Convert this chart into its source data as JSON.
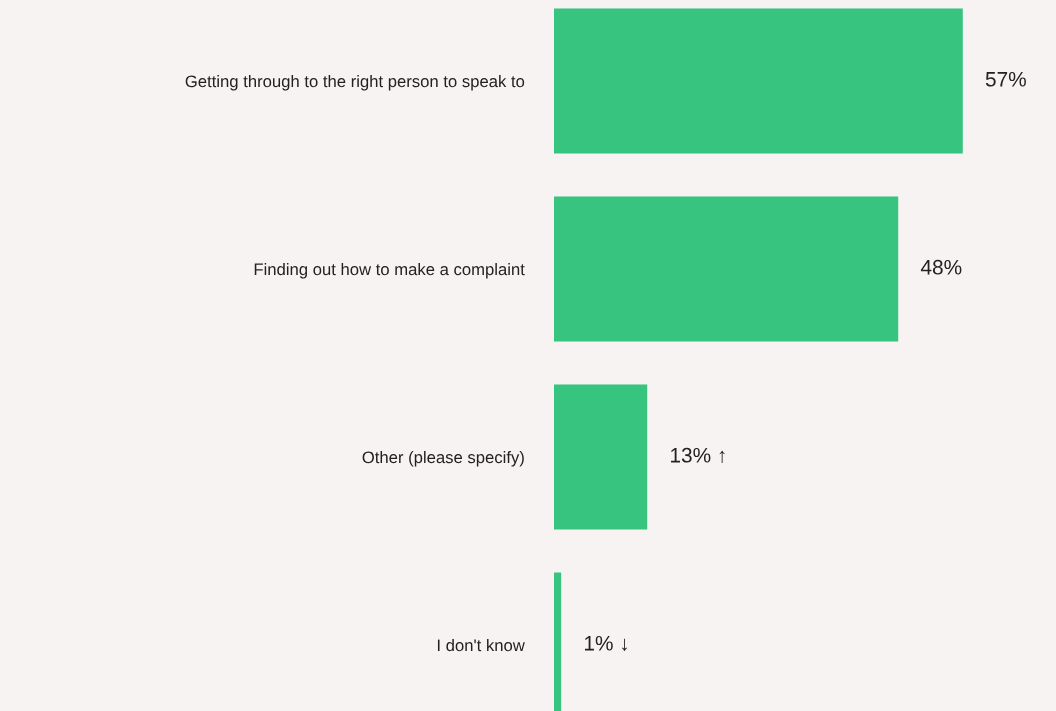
{
  "chart_data": {
    "type": "bar",
    "orientation": "horizontal",
    "categories": [
      "Getting through to the right person to speak to",
      "Finding out how to make a complaint",
      "Other (please specify)",
      "I don't know"
    ],
    "values": [
      57,
      48,
      13,
      1
    ],
    "value_labels": [
      "57%",
      "48%",
      "13% ↑",
      "1% ↓"
    ],
    "color": "#36c47f",
    "xlim": [
      0,
      70
    ],
    "tick_labels": "y",
    "grid": false
  }
}
